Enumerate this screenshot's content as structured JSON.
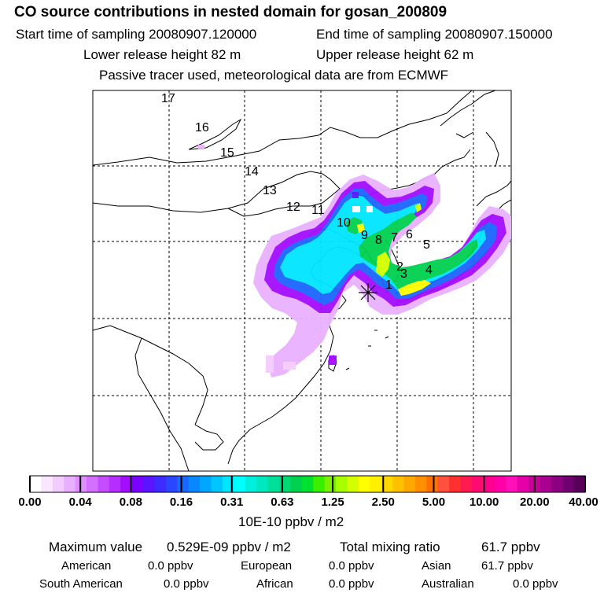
{
  "header": {
    "title": "CO  source contributions in nested domain for gosan_200809",
    "start_time": "Start time of sampling 20080907.120000",
    "end_time": "End time of sampling 20080907.150000",
    "lower_release": "Lower release height   82 m",
    "upper_release": "Upper release height   62 m",
    "tracer_note": "Passive tracer used, meteorological data are from ECMWF"
  },
  "map": {
    "trajectory_points": [
      {
        "label": "1"
      },
      {
        "label": "2"
      },
      {
        "label": "3"
      },
      {
        "label": "4"
      },
      {
        "label": "5"
      },
      {
        "label": "6"
      },
      {
        "label": "7"
      },
      {
        "label": "8"
      },
      {
        "label": "9"
      },
      {
        "label": "10"
      },
      {
        "label": "11"
      },
      {
        "label": "12"
      },
      {
        "label": "13"
      },
      {
        "label": "14"
      },
      {
        "label": "15"
      },
      {
        "label": "16"
      },
      {
        "label": "17"
      }
    ],
    "receptor_marker": "asterisk-icon"
  },
  "legend": {
    "tick_labels": [
      "0.00",
      "0.04",
      "0.08",
      "0.16",
      "0.31",
      "0.63",
      "1.25",
      "2.50",
      "5.00",
      "10.00",
      "20.00",
      "40.00"
    ],
    "units": "10E-10 ppbv / m2",
    "colors": [
      "#ffffff",
      "#fbe6ff",
      "#f3ccff",
      "#e9b0ff",
      "#df90ff",
      "#d470ff",
      "#c54cff",
      "#b62dff",
      "#a30cff",
      "#7a00ff",
      "#5a14ff",
      "#3d2cff",
      "#2b46ff",
      "#1b66ff",
      "#0a86ff",
      "#00a6ff",
      "#00c6ff",
      "#00e6ff",
      "#00ffff",
      "#00f0e0",
      "#00e8c0",
      "#00e09a",
      "#00d874",
      "#00d050",
      "#00e030",
      "#3aef00",
      "#7af000",
      "#a8ff00",
      "#d4ff00",
      "#ffff00",
      "#fff000",
      "#ffd800",
      "#ffc000",
      "#ffa800",
      "#ff9000",
      "#ff7000",
      "#ff5040",
      "#ff3030",
      "#ff1a50",
      "#ff0a70",
      "#ff0090",
      "#ff00a8",
      "#ff10b8",
      "#e600a8",
      "#c80098",
      "#aa0090",
      "#8c0080",
      "#700070",
      "#580058"
    ]
  },
  "stats": {
    "max_label": "Maximum value",
    "max_value": "0.529E-09 ppbv / m2",
    "total_label": "Total mixing ratio",
    "total_value": "61.7 ppbv",
    "regions": [
      {
        "name": "American",
        "value": "0.0 ppbv"
      },
      {
        "name": "European",
        "value": "0.0 ppbv"
      },
      {
        "name": "Asian",
        "value": "61.7 ppbv"
      },
      {
        "name": "South American",
        "value": "0.0 ppbv"
      },
      {
        "name": "African",
        "value": "0.0 ppbv"
      },
      {
        "name": "Australian",
        "value": "0.0 ppbv"
      }
    ]
  }
}
